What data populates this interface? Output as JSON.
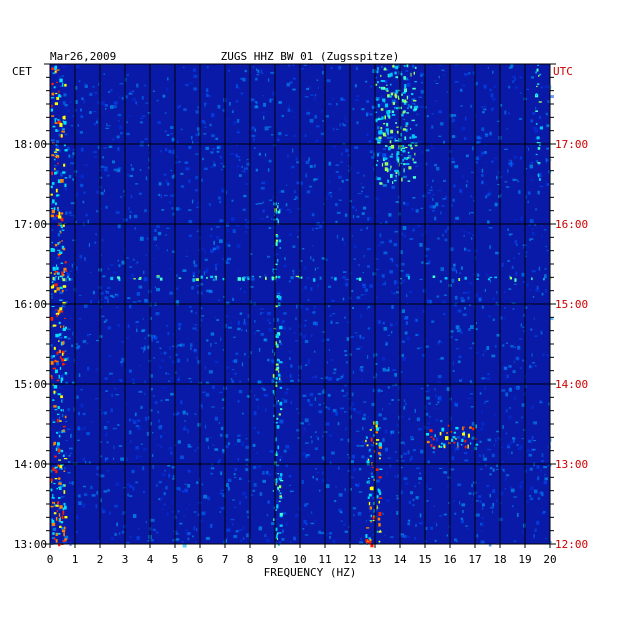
{
  "chart_data": {
    "type": "heatmap",
    "date": "Mar26,2009",
    "title": "ZUGS HHZ BW 01 (Zugsspitze)",
    "xlabel": "FREQUENCY (HZ)",
    "left_axis_title": "CET",
    "right_axis_title": "UTC",
    "xlim": [
      0,
      20
    ],
    "x_ticks": [
      "0",
      "1",
      "2",
      "3",
      "4",
      "5",
      "6",
      "7",
      "8",
      "9",
      "10",
      "11",
      "12",
      "13",
      "14",
      "15",
      "16",
      "17",
      "18",
      "19",
      "20"
    ],
    "ylim_cet_hours": [
      13,
      19
    ],
    "y_ticks_cet": [
      "13:00",
      "14:00",
      "15:00",
      "16:00",
      "17:00",
      "18:00"
    ],
    "y_ticks_utc": [
      "12:00",
      "13:00",
      "14:00",
      "15:00",
      "16:00",
      "17:00"
    ],
    "colors": {
      "background": "#0a1aa8",
      "low": "#0020c8",
      "mid": "#00c8ff",
      "high_yellow": "#ffff00",
      "high_red": "#ff2000",
      "utc_label": "#cc0000"
    },
    "features": [
      {
        "desc": "persistent energy near 0-0.6 Hz",
        "x": [
          0.0,
          0.6
        ],
        "y_cet": [
          13.0,
          19.0
        ],
        "level": "high"
      },
      {
        "desc": "band near 9 Hz",
        "x": [
          8.9,
          9.2
        ],
        "y_cet": [
          13.0,
          17.3
        ],
        "level": "mid"
      },
      {
        "desc": "band near 12.9 Hz",
        "x": [
          12.6,
          13.2
        ],
        "y_cet": [
          13.0,
          14.6
        ],
        "level": "high"
      },
      {
        "desc": "cluster 13-14.5 Hz",
        "x": [
          13.0,
          14.6
        ],
        "y_cet": [
          17.5,
          19.0
        ],
        "level": "mid"
      },
      {
        "desc": "burst 15-17 Hz",
        "x": [
          15.0,
          17.0
        ],
        "y_cet": [
          14.2,
          14.5
        ],
        "level": "high"
      },
      {
        "desc": "line near 19.5 Hz",
        "x": [
          19.4,
          19.6
        ],
        "y_cet": [
          17.5,
          19.0
        ],
        "level": "mid"
      },
      {
        "desc": "horizontal event at 16:20",
        "x": [
          0.0,
          20.0
        ],
        "y_cet": [
          16.32,
          16.36
        ],
        "level": "mid"
      }
    ]
  }
}
